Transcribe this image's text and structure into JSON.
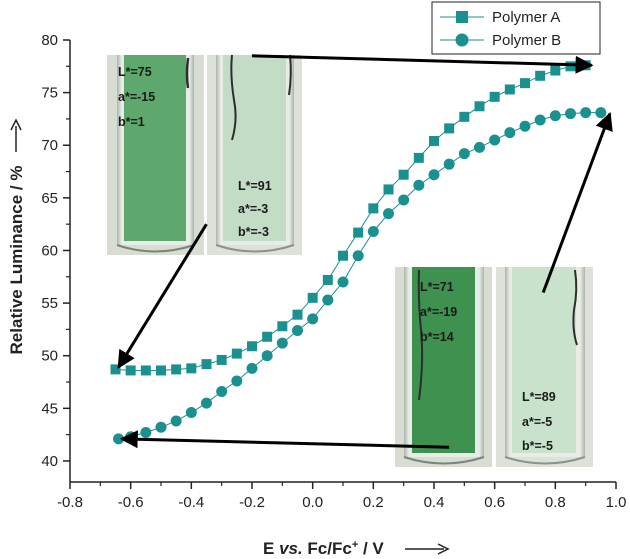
{
  "chart_data": {
    "type": "scatter",
    "xlabel": "E vs. Fc/Fc+ / V",
    "xlabel_parts": {
      "prefix": "E ",
      "italic": "vs.",
      "middle": " Fc/Fc",
      "sup": "+",
      "suffix": " / V"
    },
    "ylabel": "Relative Luminance / %",
    "xlim": [
      -0.8,
      1.0
    ],
    "ylim": [
      38,
      80
    ],
    "xticks": [
      "-0.8",
      "-0.6",
      "-0.4",
      "-0.2",
      "0.0",
      "0.2",
      "0.4",
      "0.6",
      "0.8",
      "1.0"
    ],
    "yticks": [
      "40",
      "45",
      "50",
      "55",
      "60",
      "65",
      "70",
      "75",
      "80"
    ],
    "legend_position": "top-right",
    "colors": {
      "series": "#1a9090",
      "arrow": "#000000",
      "axis": "#222222"
    },
    "series": [
      {
        "name": "Polymer A",
        "marker": "square",
        "x": [
          -0.65,
          -0.6,
          -0.55,
          -0.5,
          -0.45,
          -0.4,
          -0.35,
          -0.3,
          -0.25,
          -0.2,
          -0.15,
          -0.1,
          -0.05,
          0.0,
          0.05,
          0.1,
          0.15,
          0.2,
          0.25,
          0.3,
          0.35,
          0.4,
          0.45,
          0.5,
          0.55,
          0.6,
          0.65,
          0.7,
          0.75,
          0.8,
          0.85,
          0.9
        ],
        "y": [
          48.7,
          48.6,
          48.6,
          48.6,
          48.7,
          48.8,
          49.2,
          49.6,
          50.2,
          50.9,
          51.8,
          52.8,
          53.9,
          55.5,
          57.2,
          59.5,
          61.7,
          64.0,
          65.8,
          67.2,
          68.8,
          70.4,
          71.6,
          72.7,
          73.7,
          74.6,
          75.3,
          75.9,
          76.6,
          77.1,
          77.5,
          77.6
        ]
      },
      {
        "name": "Polymer B",
        "marker": "circle",
        "x": [
          -0.64,
          -0.6,
          -0.55,
          -0.5,
          -0.45,
          -0.4,
          -0.35,
          -0.3,
          -0.25,
          -0.2,
          -0.15,
          -0.1,
          -0.05,
          0.0,
          0.05,
          0.1,
          0.15,
          0.2,
          0.25,
          0.3,
          0.35,
          0.4,
          0.45,
          0.5,
          0.55,
          0.6,
          0.65,
          0.7,
          0.75,
          0.8,
          0.85,
          0.9,
          0.95
        ],
        "y": [
          42.1,
          42.3,
          42.7,
          43.2,
          43.8,
          44.6,
          45.5,
          46.6,
          47.6,
          48.8,
          50.0,
          51.2,
          52.4,
          53.5,
          55.3,
          57.0,
          59.5,
          61.8,
          63.5,
          64.8,
          66.2,
          67.2,
          68.2,
          69.2,
          69.8,
          70.5,
          71.2,
          71.8,
          72.4,
          72.8,
          73.0,
          73.1,
          73.1
        ]
      }
    ],
    "arrows": [
      {
        "from": [
          -0.2,
          78.5
        ],
        "to": [
          0.92,
          77.6
        ]
      },
      {
        "from": [
          -0.35,
          62.5
        ],
        "to": [
          -0.64,
          48.9
        ]
      },
      {
        "from": [
          0.45,
          41.3
        ],
        "to": [
          -0.63,
          42.1
        ]
      },
      {
        "from": [
          0.76,
          56.0
        ],
        "to": [
          0.98,
          73.0
        ]
      }
    ],
    "annotations": [
      {
        "id": "photo-a-reduced",
        "lines": [
          "L*=75",
          "a*=-15",
          "b*=1"
        ]
      },
      {
        "id": "photo-a-oxidized",
        "lines": [
          "L*=91",
          "a*=-3",
          "b*=-3"
        ]
      },
      {
        "id": "photo-b-reduced",
        "lines": [
          "L*=71",
          "a*=-19",
          "b*=14"
        ]
      },
      {
        "id": "photo-b-oxidized",
        "lines": [
          "L*=89",
          "a*=-5",
          "b*=-5"
        ]
      }
    ]
  }
}
